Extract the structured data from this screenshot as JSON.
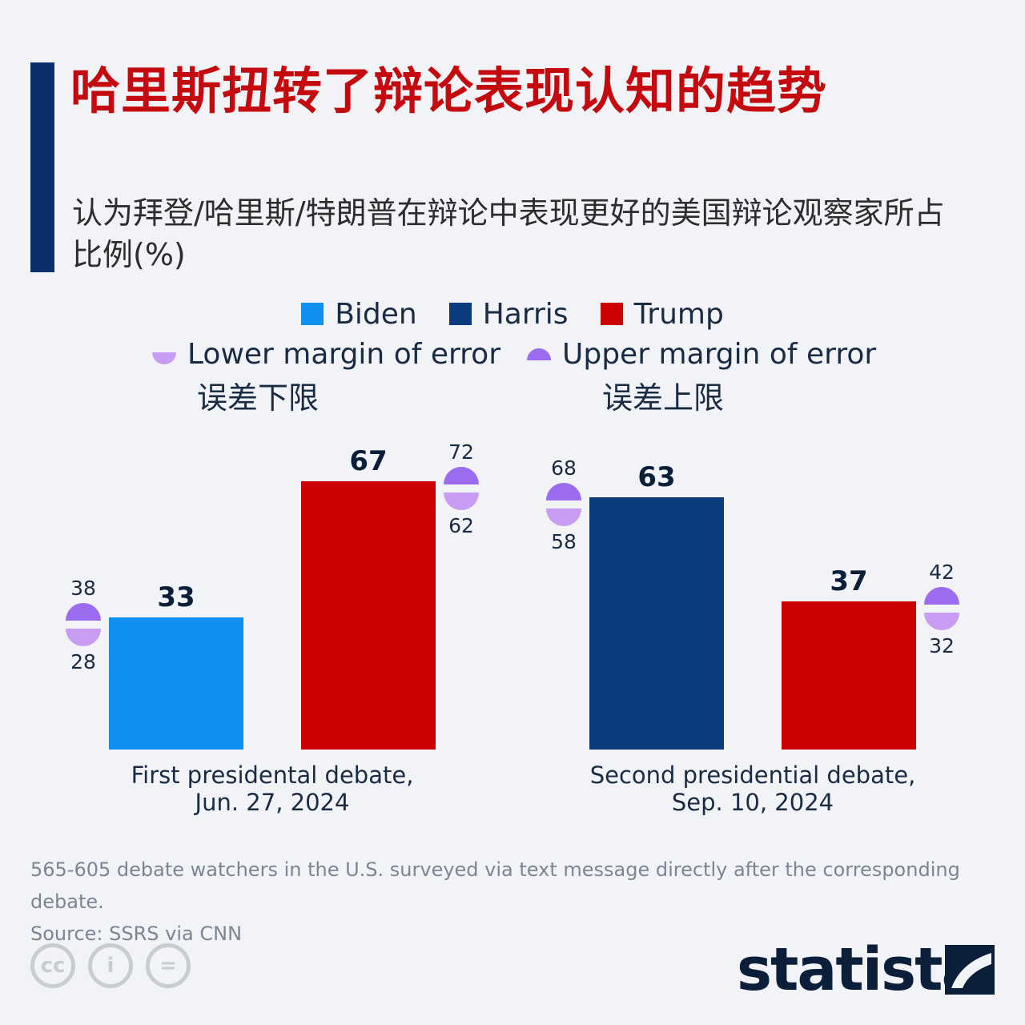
{
  "title": "哈里斯扭转了辩论表现认知的趋势",
  "subtitle": "认为拜登/哈里斯/特朗普在辩论中表现更好的美国辩论观察家所占比例(%)",
  "legend": {
    "biden": "Biden",
    "harris": "Harris",
    "trump": "Trump",
    "lower_moe": "Lower margin of error",
    "upper_moe": "Upper margin of error",
    "lower_moe_cn": "误差下限",
    "upper_moe_cn": "误差上限"
  },
  "colors": {
    "biden": "#0f8ff0",
    "harris": "#0b3a7d",
    "trump": "#cc0000",
    "upper_moe": "#9b6cf0",
    "lower_moe": "#c79cf2"
  },
  "chart_data": {
    "type": "bar",
    "unit": "%",
    "groups": [
      {
        "label_line1": "First presidental debate,",
        "label_line2": "Jun. 27, 2024",
        "bars": [
          {
            "name": "Biden",
            "value": 33,
            "upper": 38,
            "lower": 28,
            "moe_side": "left",
            "color_key": "biden"
          },
          {
            "name": "Trump",
            "value": 67,
            "upper": 72,
            "lower": 62,
            "moe_side": "right",
            "color_key": "trump"
          }
        ]
      },
      {
        "label_line1": "Second presidential debate,",
        "label_line2": "Sep. 10, 2024",
        "bars": [
          {
            "name": "Harris",
            "value": 63,
            "upper": 68,
            "lower": 58,
            "moe_side": "left",
            "color_key": "harris"
          },
          {
            "name": "Trump",
            "value": 37,
            "upper": 42,
            "lower": 32,
            "moe_side": "right",
            "color_key": "trump"
          }
        ]
      }
    ]
  },
  "footnote": "565-605 debate watchers in the U.S. surveyed via text message directly after the corresponding debate.",
  "source": "Source: SSRS via CNN",
  "license_icons": [
    "cc-icon",
    "by-person-icon",
    "nd-equals-icon"
  ],
  "license_glyphs": {
    "cc": "cc",
    "by": "i",
    "nd": "="
  },
  "brand": "statista"
}
